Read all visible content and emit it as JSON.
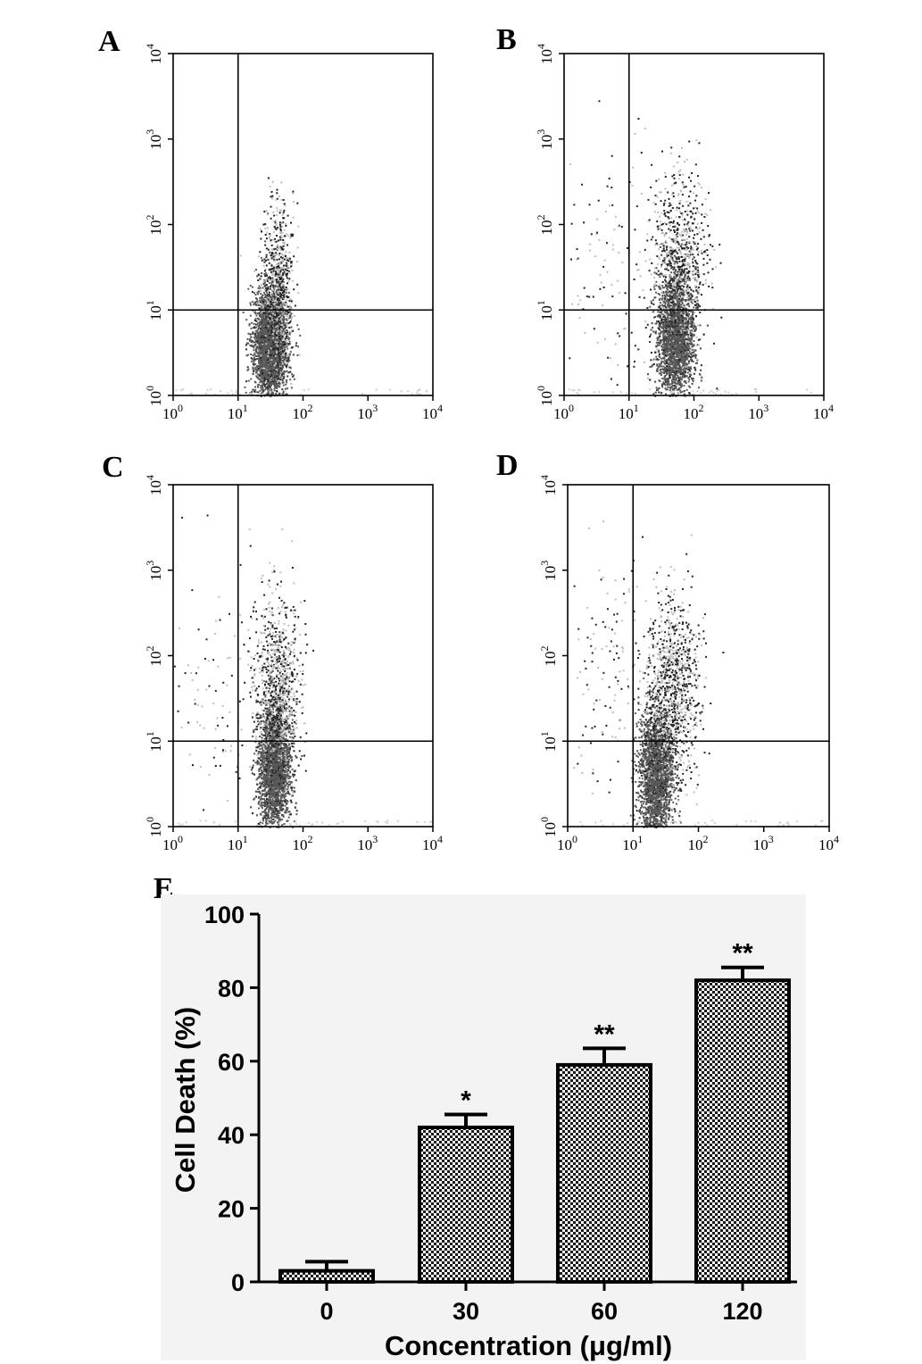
{
  "panels": [
    {
      "letter": "A"
    },
    {
      "letter": "B"
    },
    {
      "letter": "C"
    },
    {
      "letter": "D"
    },
    {
      "letter": "E"
    }
  ],
  "chart_data": [
    {
      "panel": "A",
      "type": "scatter",
      "xscale": "log",
      "yscale": "log",
      "xlim": [
        1,
        10000
      ],
      "ylim": [
        1,
        10000
      ],
      "xticks": [
        {
          "base": "10",
          "exp": "0"
        },
        {
          "base": "10",
          "exp": "1"
        },
        {
          "base": "10",
          "exp": "2"
        },
        {
          "base": "10",
          "exp": "3"
        },
        {
          "base": "10",
          "exp": "4"
        }
      ],
      "yticks": [
        {
          "base": "10",
          "exp": "0"
        },
        {
          "base": "10",
          "exp": "1"
        },
        {
          "base": "10",
          "exp": "2"
        },
        {
          "base": "10",
          "exp": "3"
        },
        {
          "base": "10",
          "exp": "4"
        }
      ],
      "quadrant_gate": {
        "x": 10,
        "y": 10
      },
      "clusters": [
        {
          "cx": 30,
          "cy": 4,
          "sx": 0.13,
          "sy": 0.32,
          "n": 2600,
          "dense": true
        },
        {
          "cx": 40,
          "cy": 20,
          "sx": 0.12,
          "sy": 0.45,
          "n": 700,
          "dense": false
        }
      ]
    },
    {
      "panel": "B",
      "type": "scatter",
      "xscale": "log",
      "yscale": "log",
      "xlim": [
        1,
        10000
      ],
      "ylim": [
        1,
        10000
      ],
      "xticks": [
        {
          "base": "10",
          "exp": "0"
        },
        {
          "base": "10",
          "exp": "1"
        },
        {
          "base": "10",
          "exp": "2"
        },
        {
          "base": "10",
          "exp": "3"
        },
        {
          "base": "10",
          "exp": "4"
        }
      ],
      "yticks": [
        {
          "base": "10",
          "exp": "0"
        },
        {
          "base": "10",
          "exp": "1"
        },
        {
          "base": "10",
          "exp": "2"
        },
        {
          "base": "10",
          "exp": "3"
        },
        {
          "base": "10",
          "exp": "4"
        }
      ],
      "quadrant_gate": {
        "x": 10,
        "y": 10
      },
      "clusters": [
        {
          "cx": 50,
          "cy": 5,
          "sx": 0.14,
          "sy": 0.38,
          "n": 3000,
          "dense": true
        },
        {
          "cx": 60,
          "cy": 40,
          "sx": 0.22,
          "sy": 0.5,
          "n": 700,
          "dense": false
        },
        {
          "cx": 6,
          "cy": 30,
          "sx": 0.5,
          "sy": 0.8,
          "n": 140,
          "dense": false
        }
      ]
    },
    {
      "panel": "C",
      "type": "scatter",
      "xscale": "log",
      "yscale": "log",
      "xlim": [
        1,
        10000
      ],
      "ylim": [
        1,
        10000
      ],
      "xticks": [
        {
          "base": "10",
          "exp": "0"
        },
        {
          "base": "10",
          "exp": "1"
        },
        {
          "base": "10",
          "exp": "2"
        },
        {
          "base": "10",
          "exp": "3"
        },
        {
          "base": "10",
          "exp": "4"
        }
      ],
      "yticks": [
        {
          "base": "10",
          "exp": "0"
        },
        {
          "base": "10",
          "exp": "1"
        },
        {
          "base": "10",
          "exp": "2"
        },
        {
          "base": "10",
          "exp": "3"
        },
        {
          "base": "10",
          "exp": "4"
        }
      ],
      "quadrant_gate": {
        "x": 10,
        "y": 10
      },
      "clusters": [
        {
          "cx": 35,
          "cy": 5,
          "sx": 0.12,
          "sy": 0.4,
          "n": 3000,
          "dense": true
        },
        {
          "cx": 40,
          "cy": 50,
          "sx": 0.18,
          "sy": 0.5,
          "n": 800,
          "dense": false
        },
        {
          "cx": 5,
          "cy": 40,
          "sx": 0.45,
          "sy": 0.8,
          "n": 120,
          "dense": false
        }
      ]
    },
    {
      "panel": "D",
      "type": "scatter",
      "xscale": "log",
      "yscale": "log",
      "xlim": [
        1,
        10000
      ],
      "ylim": [
        1,
        10000
      ],
      "xticks": [
        {
          "base": "10",
          "exp": "0"
        },
        {
          "base": "10",
          "exp": "1"
        },
        {
          "base": "10",
          "exp": "2"
        },
        {
          "base": "10",
          "exp": "3"
        },
        {
          "base": "10",
          "exp": "4"
        }
      ],
      "yticks": [
        {
          "base": "10",
          "exp": "0"
        },
        {
          "base": "10",
          "exp": "1"
        },
        {
          "base": "10",
          "exp": "2"
        },
        {
          "base": "10",
          "exp": "3"
        },
        {
          "base": "10",
          "exp": "4"
        }
      ],
      "quadrant_gate": {
        "x": 10,
        "y": 10
      },
      "clusters": [
        {
          "cx": 22,
          "cy": 4,
          "sx": 0.13,
          "sy": 0.4,
          "n": 2600,
          "dense": true
        },
        {
          "cx": 40,
          "cy": 40,
          "sx": 0.2,
          "sy": 0.55,
          "n": 1000,
          "dense": false
        },
        {
          "cx": 5,
          "cy": 60,
          "sx": 0.35,
          "sy": 0.7,
          "n": 140,
          "dense": false
        }
      ]
    },
    {
      "panel": "E",
      "type": "bar",
      "categories": [
        "0",
        "30",
        "60",
        "120"
      ],
      "values": [
        3,
        42,
        59,
        82
      ],
      "errors": [
        2.5,
        3.5,
        4.5,
        3.5
      ],
      "annotations": [
        "",
        "*",
        "**",
        "**"
      ],
      "xlabel": "Concentration (μg/ml)",
      "ylabel": "Cell Death (%)",
      "ylim": [
        0,
        100
      ],
      "yticks": [
        "0",
        "20",
        "40",
        "60",
        "80",
        "100"
      ],
      "grid": false
    }
  ]
}
